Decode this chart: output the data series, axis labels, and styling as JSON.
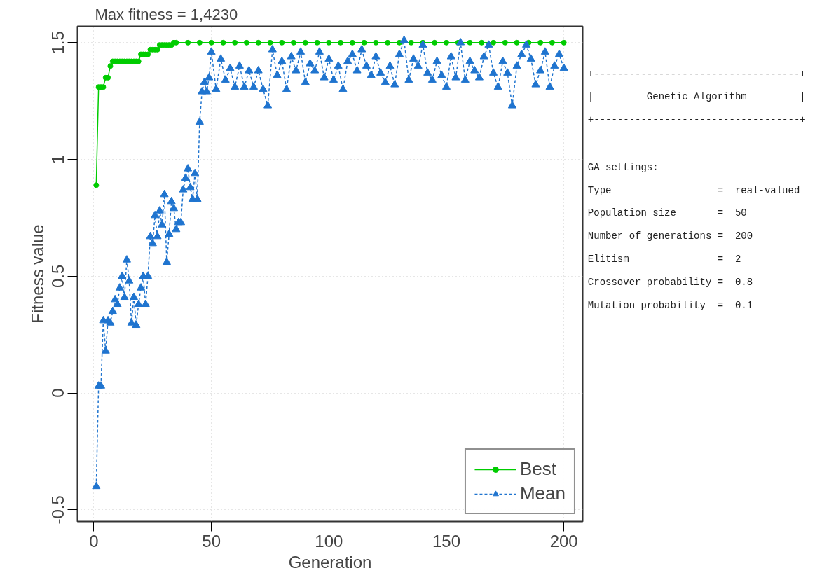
{
  "chart_data": [
    {
      "type": "line",
      "title": "Max fitness = 1,4230",
      "xlabel": "Generation",
      "ylabel": "Fitness value",
      "xlim": [
        -7,
        208
      ],
      "ylim": [
        -0.55,
        1.57
      ],
      "xticks": [
        0,
        50,
        100,
        150,
        200
      ],
      "yticks": [
        -0.5,
        0,
        0.5,
        1,
        1.5
      ],
      "grid": true,
      "legend": "bottom right",
      "series": [
        {
          "name": "Best",
          "color": "#00cc00",
          "marker": "circle",
          "line_style": "solid",
          "x": [
            1,
            2,
            3,
            4,
            5,
            6,
            7,
            8,
            9,
            10,
            11,
            12,
            13,
            14,
            15,
            16,
            17,
            18,
            19,
            20,
            21,
            22,
            23,
            24,
            25,
            26,
            27,
            28,
            29,
            30,
            31,
            32,
            33,
            34,
            35,
            40,
            45,
            50,
            55,
            60,
            65,
            70,
            75,
            80,
            85,
            90,
            95,
            100,
            105,
            110,
            115,
            120,
            125,
            130,
            135,
            140,
            145,
            150,
            155,
            160,
            165,
            170,
            175,
            180,
            185,
            190,
            195,
            200
          ],
          "values": [
            0.89,
            1.31,
            1.31,
            1.31,
            1.35,
            1.35,
            1.4,
            1.42,
            1.42,
            1.42,
            1.42,
            1.42,
            1.42,
            1.42,
            1.42,
            1.42,
            1.42,
            1.42,
            1.42,
            1.45,
            1.45,
            1.45,
            1.45,
            1.47,
            1.47,
            1.47,
            1.47,
            1.49,
            1.49,
            1.49,
            1.49,
            1.49,
            1.49,
            1.5,
            1.5,
            1.5,
            1.5,
            1.5,
            1.5,
            1.5,
            1.5,
            1.5,
            1.5,
            1.5,
            1.5,
            1.5,
            1.5,
            1.5,
            1.5,
            1.5,
            1.5,
            1.5,
            1.5,
            1.5,
            1.5,
            1.5,
            1.5,
            1.5,
            1.5,
            1.5,
            1.5,
            1.5,
            1.5,
            1.5,
            1.5,
            1.5,
            1.5,
            1.5
          ]
        },
        {
          "name": "Mean",
          "color": "#1f74cf",
          "marker": "triangle",
          "line_style": "dashed",
          "x": [
            1,
            2,
            3,
            4,
            5,
            6,
            7,
            8,
            9,
            10,
            11,
            12,
            13,
            14,
            15,
            16,
            17,
            18,
            19,
            20,
            21,
            22,
            23,
            24,
            25,
            26,
            27,
            28,
            29,
            30,
            31,
            32,
            33,
            34,
            35,
            36,
            37,
            38,
            39,
            40,
            41,
            42,
            43,
            44,
            45,
            46,
            47,
            48,
            49,
            50,
            52,
            54,
            56,
            58,
            60,
            62,
            64,
            66,
            68,
            70,
            72,
            74,
            76,
            78,
            80,
            82,
            84,
            86,
            88,
            90,
            92,
            94,
            96,
            98,
            100,
            102,
            104,
            106,
            108,
            110,
            112,
            114,
            116,
            118,
            120,
            122,
            124,
            126,
            128,
            130,
            132,
            134,
            136,
            138,
            140,
            142,
            144,
            146,
            148,
            150,
            152,
            154,
            156,
            158,
            160,
            162,
            164,
            166,
            168,
            170,
            172,
            174,
            176,
            178,
            180,
            182,
            184,
            186,
            188,
            190,
            192,
            194,
            196,
            198,
            200
          ],
          "values": [
            -0.4,
            0.03,
            0.03,
            0.31,
            0.18,
            0.31,
            0.3,
            0.35,
            0.4,
            0.38,
            0.45,
            0.5,
            0.41,
            0.57,
            0.48,
            0.3,
            0.41,
            0.29,
            0.38,
            0.45,
            0.5,
            0.38,
            0.5,
            0.67,
            0.64,
            0.76,
            0.67,
            0.78,
            0.72,
            0.85,
            0.56,
            0.68,
            0.82,
            0.79,
            0.7,
            0.73,
            0.73,
            0.87,
            0.92,
            0.96,
            0.88,
            0.83,
            0.94,
            0.83,
            1.16,
            1.29,
            1.33,
            1.29,
            1.35,
            1.46,
            1.3,
            1.43,
            1.34,
            1.39,
            1.31,
            1.4,
            1.31,
            1.38,
            1.31,
            1.38,
            1.3,
            1.23,
            1.47,
            1.36,
            1.42,
            1.3,
            1.44,
            1.38,
            1.46,
            1.33,
            1.41,
            1.38,
            1.46,
            1.35,
            1.43,
            1.34,
            1.4,
            1.3,
            1.42,
            1.45,
            1.38,
            1.47,
            1.4,
            1.36,
            1.44,
            1.37,
            1.33,
            1.4,
            1.32,
            1.45,
            1.51,
            1.34,
            1.43,
            1.4,
            1.49,
            1.37,
            1.34,
            1.42,
            1.36,
            1.31,
            1.44,
            1.35,
            1.5,
            1.34,
            1.42,
            1.38,
            1.35,
            1.44,
            1.49,
            1.37,
            1.31,
            1.42,
            1.37,
            1.23,
            1.4,
            1.45,
            1.49,
            1.43,
            1.32,
            1.38,
            1.46,
            1.31,
            1.4,
            1.45,
            1.39
          ]
        }
      ]
    },
    {
      "type": "other",
      "annotations": [
        "+-----------------------------------+",
        "|         Genetic Algorithm         |",
        "+-----------------------------------+",
        "GA settings:",
        "Type                  =  real-valued",
        "Population size       =  50",
        "Number of generations =  200",
        "Elitism               =  2",
        "Crossover probability =  0.8",
        "Mutation probability  =  0.1"
      ]
    }
  ]
}
